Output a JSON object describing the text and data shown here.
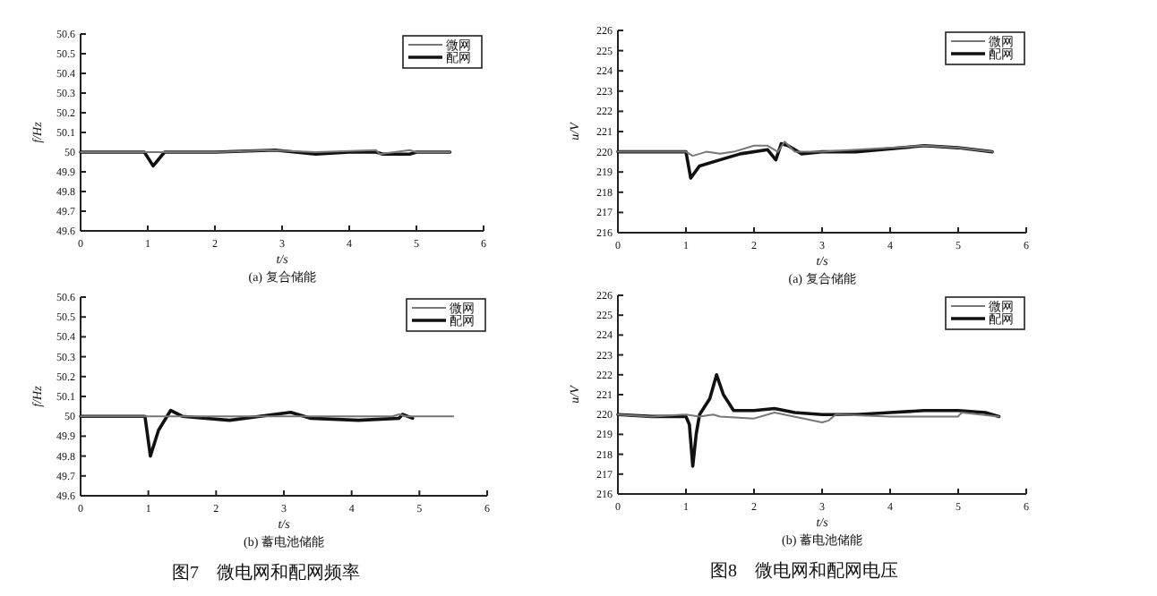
{
  "chart_data": [
    {
      "type": "line",
      "title": "(a) 复合储能",
      "xlabel": "t/s",
      "ylabel": "f/Hz",
      "xlim": [
        0,
        6
      ],
      "xticks": [
        0,
        1,
        2,
        3,
        4,
        5,
        6
      ],
      "ylim": [
        49.6,
        50.6
      ],
      "yticks": [
        49.6,
        49.7,
        49.8,
        49.9,
        50,
        50.1,
        50.2,
        50.3,
        50.4,
        50.5,
        50.6
      ],
      "legend": "top right",
      "grid": false,
      "series": [
        {
          "name": "微网",
          "color": "#777777",
          "x": [
            0,
            1,
            2,
            2.8,
            3.5,
            4.4,
            4.45,
            4.9,
            5,
            5.5
          ],
          "values": [
            50,
            50,
            50,
            50.01,
            50,
            50.01,
            49.99,
            50.01,
            50,
            50
          ]
        },
        {
          "name": "配网",
          "color": "#111111",
          "x": [
            0,
            0.95,
            1.08,
            1.25,
            2,
            2.9,
            3.5,
            4,
            4.4,
            4.5,
            4.9,
            5,
            5.5
          ],
          "values": [
            50,
            50,
            49.93,
            50,
            50,
            50.01,
            49.99,
            50,
            50,
            49.99,
            49.99,
            50,
            50
          ]
        }
      ]
    },
    {
      "type": "line",
      "title": "(a) 复合储能",
      "xlabel": "t/s",
      "ylabel": "u/V",
      "xlim": [
        0,
        6
      ],
      "xticks": [
        0,
        1,
        2,
        3,
        4,
        5,
        6
      ],
      "ylim": [
        216,
        226
      ],
      "yticks": [
        216,
        217,
        218,
        219,
        220,
        221,
        222,
        223,
        224,
        225,
        226
      ],
      "legend": "top right",
      "grid": false,
      "series": [
        {
          "name": "微网",
          "color": "#777777",
          "x": [
            0,
            1,
            1.1,
            1.3,
            1.5,
            1.7,
            2,
            2.2,
            2.35,
            2.45,
            2.6,
            3,
            3.5,
            4.5,
            5,
            5.5
          ],
          "values": [
            220,
            220,
            219.8,
            220,
            219.9,
            220,
            220.3,
            220.3,
            220,
            220.5,
            220,
            220,
            220.1,
            220.3,
            220.2,
            220
          ]
        },
        {
          "name": "配网",
          "color": "#111111",
          "x": [
            0,
            1,
            1.07,
            1.2,
            1.5,
            1.8,
            2.2,
            2.32,
            2.4,
            2.5,
            2.7,
            3,
            3.5,
            4.5,
            5,
            5.5
          ],
          "values": [
            220,
            220,
            218.7,
            219.3,
            219.6,
            219.9,
            220.1,
            219.6,
            220.4,
            220.3,
            219.9,
            220,
            220,
            220.3,
            220.2,
            220
          ]
        }
      ]
    },
    {
      "type": "line",
      "title": "(b) 蓄电池储能",
      "xlabel": "t/s",
      "ylabel": "f/Hz",
      "xlim": [
        0,
        6
      ],
      "xticks": [
        0,
        1,
        2,
        3,
        4,
        5,
        6
      ],
      "ylim": [
        49.6,
        50.6
      ],
      "yticks": [
        49.6,
        49.7,
        49.8,
        49.9,
        50,
        50.1,
        50.2,
        50.3,
        50.4,
        50.5,
        50.6
      ],
      "legend": "top right",
      "grid": false,
      "annotations": [
        "图7　微电网和配网频率"
      ],
      "series": [
        {
          "name": "微网",
          "color": "#777777",
          "x": [
            0,
            4.6,
            4.7,
            4.8,
            4.9,
            5.5
          ],
          "values": [
            50,
            50,
            50.01,
            50,
            50,
            50
          ]
        },
        {
          "name": "配网",
          "color": "#111111",
          "x": [
            0,
            0.95,
            1.03,
            1.15,
            1.33,
            1.5,
            2.2,
            3.1,
            3.4,
            4.1,
            4.7,
            4.75,
            4.9
          ],
          "values": [
            50,
            50,
            49.8,
            49.93,
            50.03,
            50,
            49.98,
            50.02,
            49.99,
            49.98,
            49.99,
            50.01,
            49.99
          ]
        }
      ]
    },
    {
      "type": "line",
      "title": "(b) 蓄电池储能",
      "xlabel": "t/s",
      "ylabel": "u/V",
      "xlim": [
        0,
        6
      ],
      "xticks": [
        0,
        1,
        2,
        3,
        4,
        5,
        6
      ],
      "ylim": [
        216,
        226
      ],
      "yticks": [
        216,
        217,
        218,
        219,
        220,
        221,
        222,
        223,
        224,
        225,
        226
      ],
      "legend": "top right",
      "grid": false,
      "annotations": [
        "图8　微电网和配网电压"
      ],
      "series": [
        {
          "name": "微网",
          "color": "#777777",
          "x": [
            0,
            0.5,
            1,
            1.2,
            1.4,
            1.5,
            2,
            2.3,
            3,
            3.1,
            3.2,
            4,
            5,
            5.05,
            5.6
          ],
          "values": [
            220,
            219.9,
            220,
            219.9,
            220,
            219.9,
            219.8,
            220.1,
            219.6,
            219.7,
            220,
            219.9,
            219.9,
            220.1,
            219.9
          ]
        },
        {
          "name": "配网",
          "color": "#111111",
          "x": [
            0,
            0.5,
            1,
            1.05,
            1.1,
            1.15,
            1.2,
            1.35,
            1.45,
            1.55,
            1.7,
            2,
            2.3,
            2.6,
            3,
            3.5,
            4,
            4.5,
            5,
            5.4,
            5.6
          ],
          "values": [
            220,
            219.9,
            219.9,
            219.5,
            217.4,
            219,
            220,
            220.8,
            222,
            221,
            220.2,
            220.2,
            220.3,
            220.1,
            220,
            220,
            220.1,
            220.2,
            220.2,
            220.1,
            219.9
          ]
        }
      ]
    }
  ]
}
